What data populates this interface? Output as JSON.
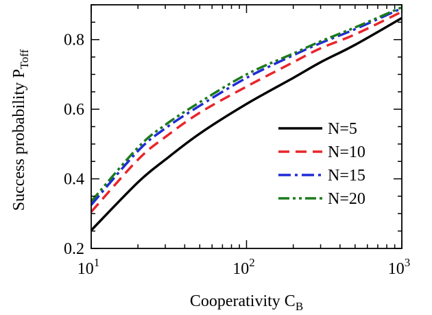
{
  "chart_data": {
    "type": "line",
    "xlabel": "Cooperativity",
    "xlabel_sub": "B",
    "xlabel_main": "C",
    "ylabel_main": "Success probability P",
    "ylabel_sub": "Toff",
    "xscale": "log",
    "xlim": [
      10,
      1000
    ],
    "ylim": [
      0.2,
      0.9
    ],
    "x_ticks": [
      {
        "base": "10",
        "exp": "1",
        "value": 10
      },
      {
        "base": "10",
        "exp": "2",
        "value": 100
      },
      {
        "base": "10",
        "exp": "3",
        "value": 1000
      }
    ],
    "y_ticks": [
      {
        "label": "0.2",
        "value": 0.2
      },
      {
        "label": "0.4",
        "value": 0.4
      },
      {
        "label": "0.6",
        "value": 0.6
      },
      {
        "label": "0.8",
        "value": 0.8
      }
    ],
    "grid": false,
    "legend_position": "right",
    "series": [
      {
        "name": "N=5",
        "color": "#000000",
        "style": "solid",
        "x": [
          10,
          20,
          30,
          50,
          100,
          200,
          300,
          500,
          1000
        ],
        "y": [
          0.252,
          0.39,
          0.455,
          0.53,
          0.615,
          0.69,
          0.735,
          0.785,
          0.862
        ]
      },
      {
        "name": "N=10",
        "color": "#e8262a",
        "style": "dashed",
        "x": [
          10,
          20,
          30,
          50,
          100,
          200,
          300,
          500,
          1000
        ],
        "y": [
          0.305,
          0.455,
          0.52,
          0.59,
          0.665,
          0.735,
          0.775,
          0.815,
          0.88
        ]
      },
      {
        "name": "N=15",
        "color": "#1f2bd6",
        "style": "dashdot",
        "x": [
          10,
          20,
          30,
          50,
          100,
          200,
          300,
          500,
          1000
        ],
        "y": [
          0.325,
          0.48,
          0.545,
          0.61,
          0.69,
          0.755,
          0.79,
          0.83,
          0.89
        ]
      },
      {
        "name": "N=20",
        "color": "#1c7a1c",
        "style": "dashdotdot",
        "x": [
          10,
          20,
          30,
          50,
          100,
          200,
          300,
          500,
          1000
        ],
        "y": [
          0.335,
          0.49,
          0.555,
          0.62,
          0.7,
          0.76,
          0.795,
          0.835,
          0.893
        ]
      }
    ]
  }
}
